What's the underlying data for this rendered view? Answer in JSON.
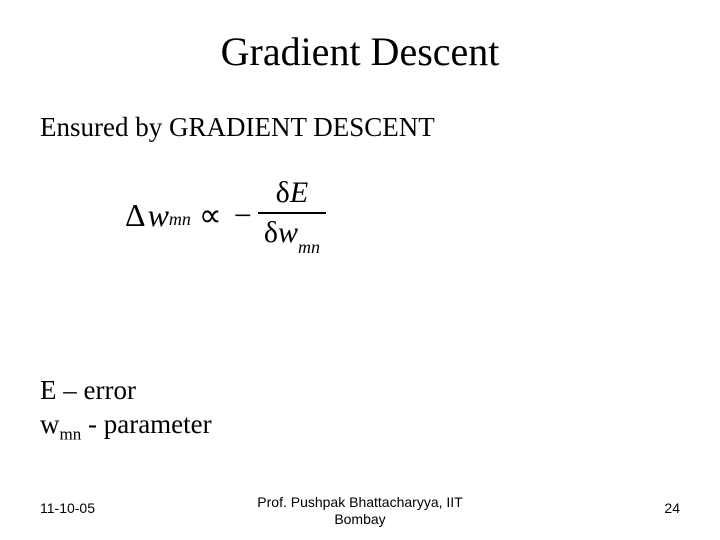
{
  "title": "Gradient Descent",
  "subtitle": "Ensured by GRADIENT DESCENT",
  "equation": {
    "lhs_delta": "Δ",
    "lhs_var": "w",
    "lhs_sub": "mn",
    "propto": "∝",
    "minus": "−",
    "partial": "δ",
    "num_var": "E",
    "den_var": "w",
    "den_sub": "mn",
    "font_size_main": 32,
    "font_size_sub": 18,
    "colors": {
      "text": "#000000",
      "bar": "#000000"
    }
  },
  "definitions": {
    "line1_pre": "E – error",
    "line2_var": "w",
    "line2_sub": "mn",
    "line2_post": " - parameter"
  },
  "footer": {
    "date": "11-10-05",
    "center_line1": "Prof. Pushpak Bhattacharyya, IIT",
    "center_line2": "Bombay",
    "page": "24"
  },
  "style": {
    "background_color": "#ffffff",
    "text_color": "#000000",
    "title_fontsize": 40,
    "body_fontsize": 27,
    "footer_fontsize": 14,
    "font_family_body": "Times New Roman",
    "font_family_footer": "Arial"
  }
}
